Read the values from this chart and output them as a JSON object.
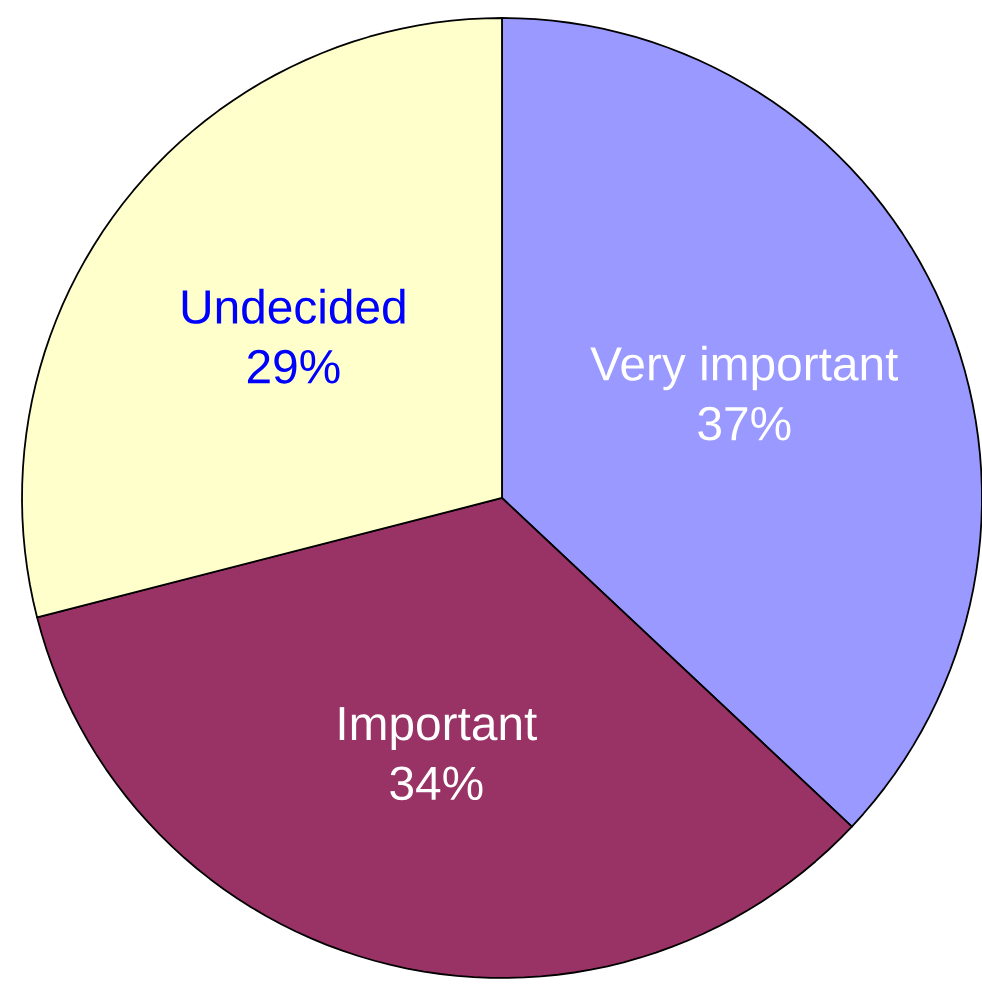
{
  "chart_data": {
    "type": "pie",
    "categories": [
      "Very important",
      "Important",
      "Undecided"
    ],
    "values": [
      37,
      34,
      29
    ],
    "value_labels": [
      "37%",
      "34%",
      "29%"
    ],
    "colors": [
      "#9999ff",
      "#993366",
      "#ffffcc"
    ]
  }
}
